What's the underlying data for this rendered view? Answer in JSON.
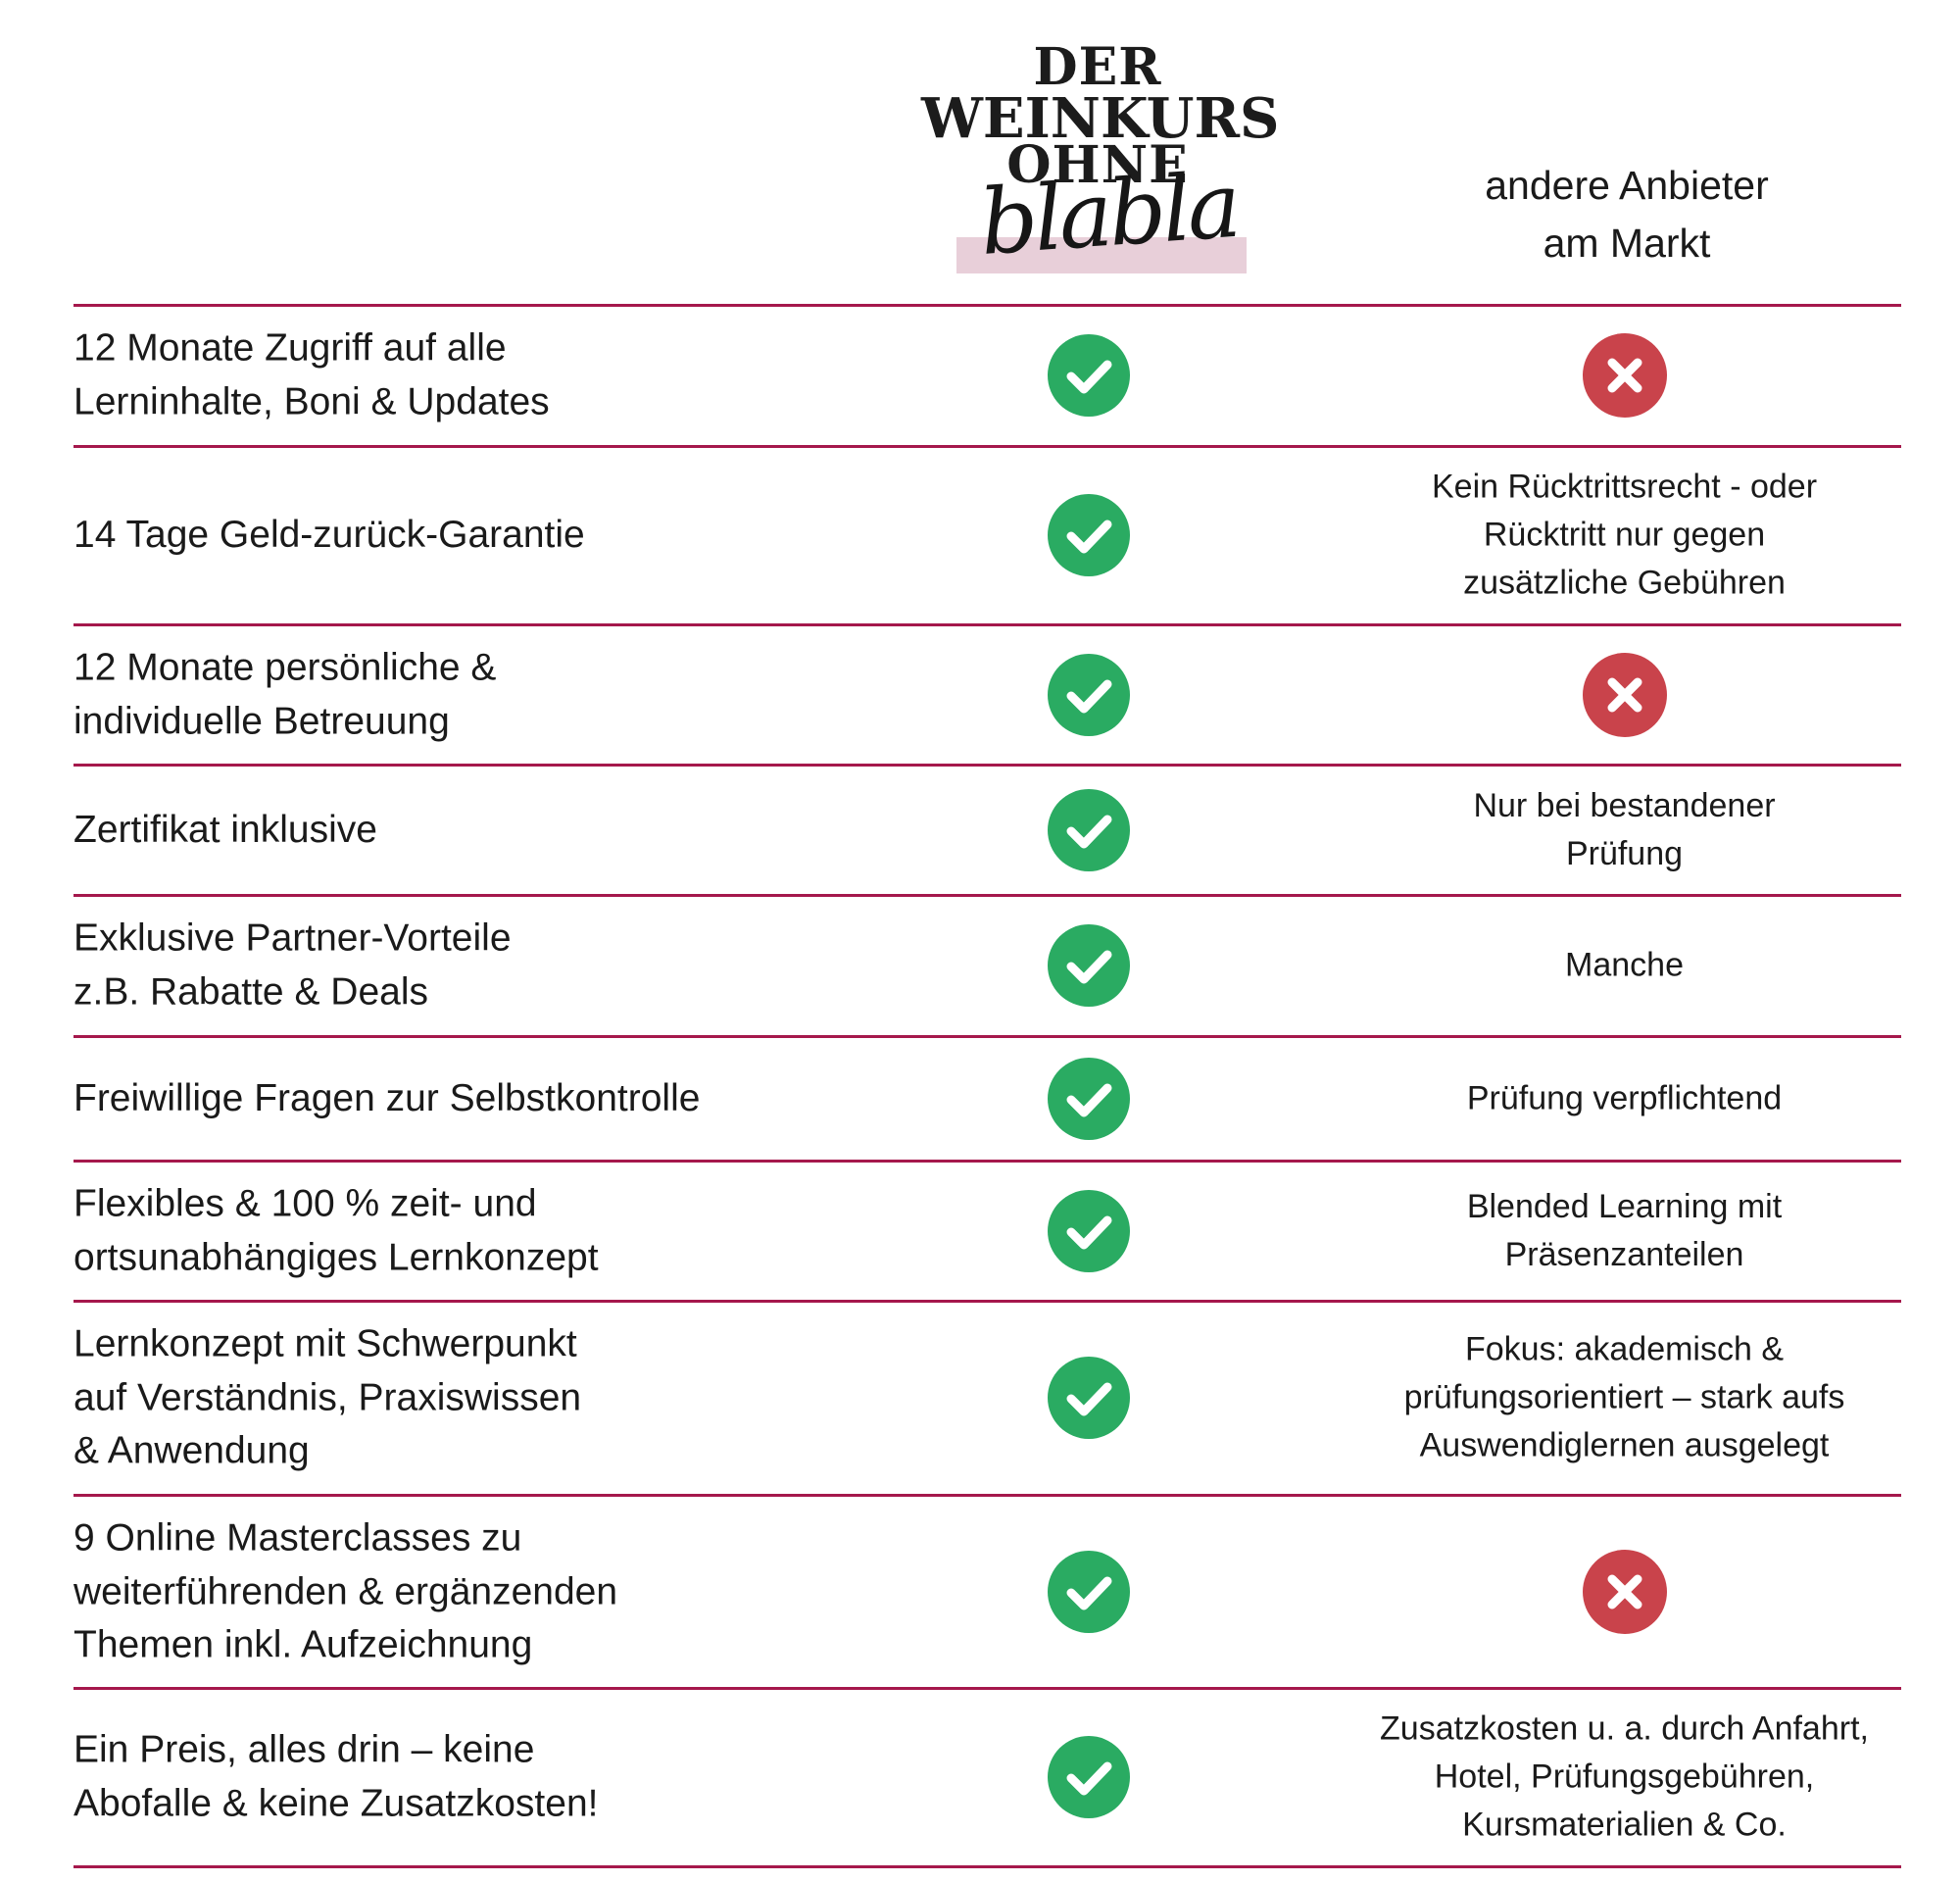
{
  "logo": {
    "line1": "DER",
    "line2": "WEINKURS",
    "line3": "OHNE",
    "script": "blabla",
    "highlight_color": "#e8cfd9"
  },
  "other_column_header": "andere Anbieter\nam Markt",
  "colors": {
    "rule": "#a5184c",
    "check": "#2aab62",
    "cross": "#c9434b"
  },
  "rows": [
    {
      "feature": "12 Monate Zugriff auf alle\nLerninhalte, Boni & Updates",
      "ours": "check-icon",
      "other": "",
      "other_icon": "cross-icon"
    },
    {
      "feature": "14 Tage Geld-zurück-Garantie",
      "ours": "check-icon",
      "other": "Kein Rücktrittsrecht - oder\nRücktritt nur gegen\nzusätzliche Gebühren",
      "other_icon": ""
    },
    {
      "feature": "12 Monate persönliche &\nindividuelle Betreuung",
      "ours": "check-icon",
      "other": "",
      "other_icon": "cross-icon"
    },
    {
      "feature": "Zertifikat inklusive",
      "ours": "check-icon",
      "other": "Nur bei bestandener\nPrüfung",
      "other_icon": ""
    },
    {
      "feature": "Exklusive Partner-Vorteile\nz.B. Rabatte & Deals",
      "ours": "check-icon",
      "other": "Manche",
      "other_icon": ""
    },
    {
      "feature": "Freiwillige Fragen zur Selbstkontrolle",
      "ours": "check-icon",
      "other": "Prüfung verpflichtend",
      "other_icon": ""
    },
    {
      "feature": "Flexibles & 100 % zeit- und\nortsunabhängiges Lernkonzept",
      "ours": "check-icon",
      "other": "Blended Learning mit\nPräsenzanteilen",
      "other_icon": ""
    },
    {
      "feature": "Lernkonzept mit Schwerpunkt\nauf Verständnis, Praxiswissen\n& Anwendung",
      "ours": "check-icon",
      "other": "Fokus: akademisch &\nprüfungsorientiert – stark aufs\nAuswendiglernen ausgelegt",
      "other_icon": ""
    },
    {
      "feature": "9 Online Masterclasses zu\nweiterführenden & ergänzenden\nThemen inkl. Aufzeichnung",
      "ours": "check-icon",
      "other": "",
      "other_icon": "cross-icon"
    },
    {
      "feature": "Ein Preis, alles drin – keine\nAbofalle & keine Zusatzkosten!",
      "ours": "check-icon",
      "other": "Zusatzkosten u. a. durch Anfahrt,\nHotel, Prüfungsgebühren,\nKursmaterialien & Co.",
      "other_icon": ""
    }
  ]
}
